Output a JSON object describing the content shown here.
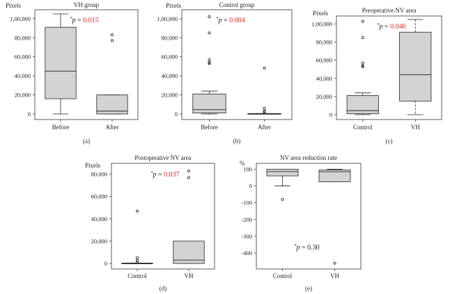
{
  "chart_data": [
    {
      "id": "a",
      "type": "box",
      "title": "VH group",
      "ylabel": "Pixels",
      "caption": "(a)",
      "categories": [
        "Before",
        "After"
      ],
      "ylim": [
        0,
        105000
      ],
      "yticks": [
        0,
        20000,
        40000,
        60000,
        80000,
        100000
      ],
      "ytick_labels": [
        "0",
        "20,000",
        "40,000",
        "60,000",
        "80,000",
        "1,00,000"
      ],
      "pvalue": {
        "prefix": "*",
        "symbol": "p",
        "eq": " = ",
        "value": "0.015",
        "color": "#e8201c"
      },
      "boxes": [
        {
          "min": 0,
          "q1": 16000,
          "median": 45000,
          "q3": 91000,
          "max": 105000,
          "whisker_style": "solid",
          "outliers": []
        },
        {
          "min": 0,
          "q1": 0,
          "median": 3000,
          "q3": 20000,
          "max": 20000,
          "whisker_style": "solid",
          "outliers": [
            77000,
            83000
          ]
        }
      ]
    },
    {
      "id": "b",
      "type": "box",
      "title": "Control group",
      "ylabel": "Pixels",
      "caption": "(b)",
      "categories": [
        "Before",
        "After"
      ],
      "ylim": [
        0,
        105000
      ],
      "yticks": [
        0,
        20000,
        40000,
        60000,
        80000,
        100000
      ],
      "ytick_labels": [
        "0",
        "20,000",
        "40,000",
        "60,000",
        "80,000",
        "1,00,000"
      ],
      "pvalue": {
        "prefix": "*",
        "symbol": "p",
        "eq": " = ",
        "value": "0.004",
        "color": "#e8201c"
      },
      "boxes": [
        {
          "min": 0,
          "q1": 1000,
          "median": 4500,
          "q3": 21000,
          "max": 24000,
          "whisker_style": "solid",
          "outliers": [
            53000,
            54000,
            57000,
            85000,
            102000
          ]
        },
        {
          "min": 0,
          "q1": 0,
          "median": 0,
          "q3": 500,
          "max": 500,
          "whisker_style": "solid",
          "outliers": [
            2000,
            3000,
            6000,
            48000
          ]
        }
      ]
    },
    {
      "id": "c",
      "type": "box",
      "title": "Preoperative NV area",
      "ylabel": "Pixels",
      "caption": "(c)",
      "categories": [
        "Control",
        "VH"
      ],
      "ylim": [
        0,
        105000
      ],
      "yticks": [
        0,
        20000,
        40000,
        60000,
        80000,
        100000
      ],
      "ytick_labels": [
        "0",
        "20,000",
        "40,000",
        "60,000",
        "80,000",
        "1,00,000"
      ],
      "pvalue": {
        "prefix": "*",
        "symbol": "p",
        "eq": " = ",
        "value": "0.046",
        "color": "#e8201c"
      },
      "boxes": [
        {
          "min": 0,
          "q1": 1000,
          "median": 4500,
          "q3": 21000,
          "max": 24000,
          "whisker_style": "dashed",
          "outliers": [
            53000,
            54000,
            57000,
            85000,
            103000
          ]
        },
        {
          "min": 0,
          "q1": 15000,
          "median": 44000,
          "q3": 91000,
          "max": 105000,
          "whisker_style": "dashed",
          "outliers": []
        }
      ]
    },
    {
      "id": "d",
      "type": "box",
      "title": "Postoperative NV area",
      "ylabel": "Pixels",
      "caption": "(d)",
      "categories": [
        "Control",
        "VH"
      ],
      "ylim": [
        0,
        86000
      ],
      "yticks": [
        0,
        20000,
        40000,
        60000,
        80000
      ],
      "ytick_labels": [
        "0",
        "20,000",
        "40,000",
        "60,000",
        "80,000"
      ],
      "pvalue": {
        "prefix": "*",
        "symbol": "p",
        "eq": " = ",
        "value": "0.037",
        "color": "#e8201c"
      },
      "boxes": [
        {
          "min": 0,
          "q1": 0,
          "median": 0,
          "q3": 300,
          "max": 300,
          "whisker_style": "solid",
          "outliers": [
            1000,
            2500,
            5000,
            47000
          ]
        },
        {
          "min": 0,
          "q1": 0,
          "median": 3000,
          "q3": 20000,
          "max": 20000,
          "whisker_style": "solid",
          "outliers": [
            77000,
            83000
          ]
        }
      ]
    },
    {
      "id": "e",
      "type": "box",
      "title": "NV area reduction rate",
      "ylabel": "%",
      "caption": "(e)",
      "categories": [
        "Control",
        "VH"
      ],
      "ylim": [
        -470,
        110
      ],
      "yticks": [
        -400,
        -300,
        -200,
        -100,
        0,
        100
      ],
      "ytick_labels": [
        "-400",
        "-300",
        "-200",
        "-100",
        "0",
        "100"
      ],
      "pvalue": {
        "prefix": "*",
        "symbol": "p",
        "eq": " = ",
        "value": "0.30",
        "color": "#222222"
      },
      "boxes": [
        {
          "min": 0,
          "q1": 60,
          "median": 86,
          "q3": 100,
          "max": 100,
          "whisker_style": "solid",
          "outliers": [
            -80
          ]
        },
        {
          "min": 25,
          "q1": 25,
          "median": 85,
          "q3": 95,
          "max": 100,
          "whisker_style": "solid",
          "outliers": [
            -460
          ]
        }
      ]
    }
  ]
}
